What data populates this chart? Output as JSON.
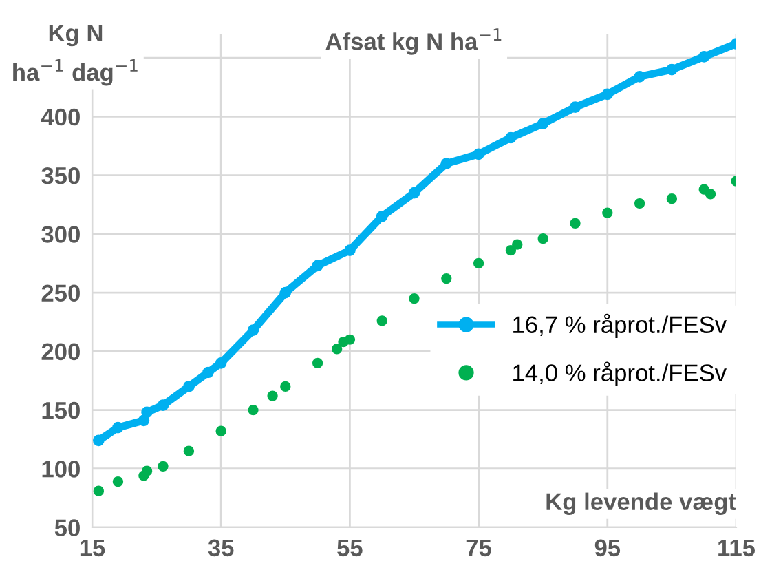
{
  "chart_data": {
    "type": "line",
    "title": "Afsat kg N ha$^{−1}$",
    "ylabel": "Kg N\nha$^{−1}$ dag$^{−1}$",
    "xlabel": "Kg levende vægt",
    "xlim": [
      15,
      115
    ],
    "xticks": [
      15,
      35,
      55,
      75,
      95,
      115
    ],
    "ylim": [
      50,
      470
    ],
    "yticks": [
      50,
      100,
      150,
      200,
      250,
      300,
      350,
      400,
      {
        "value": 450,
        "label": null
      }
    ],
    "grid": true,
    "legend": "right",
    "marker": "circle",
    "series": [
      {
        "name": "16,7 % råprot./FESv",
        "color": "#00b0f0",
        "x": [
          16,
          19,
          23,
          23.5,
          26,
          30,
          33,
          35,
          40,
          45,
          50,
          55,
          60,
          65,
          70,
          75,
          80,
          85,
          90,
          95,
          100,
          105,
          110,
          115
        ],
        "values": [
          124,
          135,
          141,
          148,
          154,
          170,
          182,
          190,
          218,
          250,
          273,
          286,
          315,
          335,
          360,
          368,
          382,
          394,
          408,
          419,
          434,
          440,
          451,
          462
        ]
      },
      {
        "name": "14,0 % råprot./FESv",
        "color": "#00b050",
        "type": "scatter",
        "x": [
          16,
          19,
          23,
          23.5,
          26,
          30,
          35,
          40,
          43,
          45,
          50,
          53,
          54,
          55,
          60,
          65,
          70,
          75,
          80,
          81,
          85,
          90,
          95,
          100,
          105,
          110,
          111,
          115
        ],
        "values": [
          81,
          89,
          94,
          98,
          102,
          115,
          132,
          150,
          162,
          170,
          190,
          202,
          208,
          210,
          226,
          245,
          262,
          275,
          286,
          291,
          296,
          309,
          318,
          326,
          330,
          338,
          334,
          345
        ]
      }
    ]
  }
}
